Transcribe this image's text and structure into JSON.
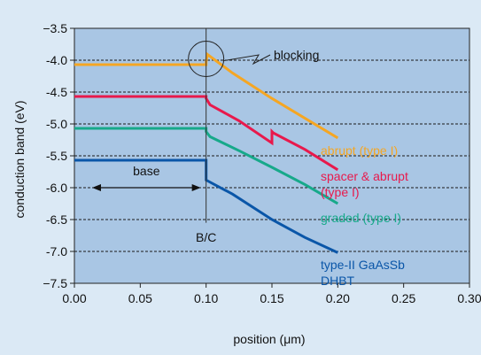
{
  "chart_data": {
    "type": "line",
    "title": "",
    "xlabel": "position (μm)",
    "ylabel": "conduction band (eV)",
    "xlim": [
      0.0,
      0.3
    ],
    "ylim": [
      -7.5,
      -3.5
    ],
    "x_ticks": [
      0.0,
      0.05,
      0.1,
      0.15,
      0.2,
      0.25,
      0.3
    ],
    "x_tick_labels": [
      "0.00",
      "0.05",
      "0.10",
      "0.15",
      "0.20",
      "0.25",
      "0.30"
    ],
    "y_ticks": [
      -3.5,
      -4.0,
      -4.5,
      -5.0,
      -5.5,
      -6.0,
      -6.5,
      -7.0,
      -7.5
    ],
    "y_tick_labels": [
      "−3.5",
      "-4.0",
      "-4.5",
      "-5.0",
      "-5.5",
      "-6.0",
      "-6.5",
      "-7.0",
      "−7.5"
    ],
    "grid": "horizontal-dashed",
    "series": [
      {
        "name": "abrupt (type I)",
        "color": "#f5a623",
        "points": [
          [
            0.0,
            -4.07
          ],
          [
            0.1,
            -4.07
          ],
          [
            0.1,
            -4.02
          ],
          [
            0.101,
            -3.91
          ],
          [
            0.12,
            -4.2
          ],
          [
            0.15,
            -4.6
          ],
          [
            0.2,
            -5.22
          ]
        ]
      },
      {
        "name": "spacer & abrupt (type I)",
        "color": "#e8194c",
        "points": [
          [
            0.0,
            -4.57
          ],
          [
            0.1,
            -4.57
          ],
          [
            0.1,
            -4.6
          ],
          [
            0.103,
            -4.7
          ],
          [
            0.125,
            -4.95
          ],
          [
            0.15,
            -5.3
          ],
          [
            0.15,
            -5.12
          ],
          [
            0.151,
            -5.14
          ],
          [
            0.175,
            -5.4
          ],
          [
            0.2,
            -5.72
          ]
        ]
      },
      {
        "name": "graded (type I)",
        "color": "#17a98a",
        "points": [
          [
            0.0,
            -5.07
          ],
          [
            0.1,
            -5.07
          ],
          [
            0.1,
            -5.12
          ],
          [
            0.103,
            -5.2
          ],
          [
            0.125,
            -5.42
          ],
          [
            0.15,
            -5.68
          ],
          [
            0.175,
            -5.95
          ],
          [
            0.2,
            -6.25
          ]
        ]
      },
      {
        "name": "type-II GaAsSb DHBT",
        "color": "#0a56a8",
        "points": [
          [
            0.0,
            -5.57
          ],
          [
            0.1,
            -5.57
          ],
          [
            0.1,
            -5.88
          ],
          [
            0.12,
            -6.1
          ],
          [
            0.15,
            -6.5
          ],
          [
            0.175,
            -6.78
          ],
          [
            0.2,
            -7.02
          ]
        ]
      }
    ],
    "annotations": {
      "blocking": "blocking",
      "base": "base",
      "interface": "B/C",
      "interface_x": 0.1,
      "base_span": [
        0.0,
        0.1
      ],
      "base_y": -6.0,
      "circle_center": [
        0.1,
        -3.98
      ]
    }
  }
}
